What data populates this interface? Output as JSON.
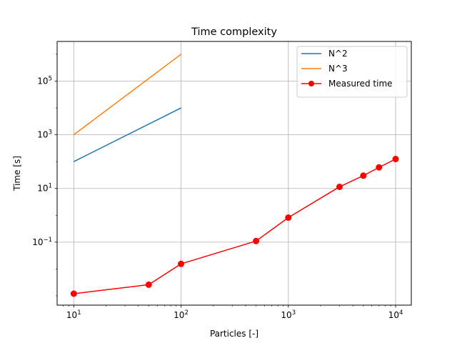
{
  "chart_data": {
    "type": "line",
    "title": "Time complexity",
    "xlabel": "Particles [-]",
    "ylabel": "Time [s]",
    "xscale": "log",
    "yscale": "log",
    "xlim": [
      7,
      14000
    ],
    "ylim": [
      0.00045,
      3000000
    ],
    "grid": true,
    "legend_placement": "top-right",
    "x_ticks": [
      {
        "value": 10,
        "base": "10",
        "exp": "1"
      },
      {
        "value": 100,
        "base": "10",
        "exp": "2"
      },
      {
        "value": 1000,
        "base": "10",
        "exp": "3"
      },
      {
        "value": 10000,
        "base": "10",
        "exp": "4"
      }
    ],
    "y_ticks": [
      {
        "value": 0.1,
        "base": "10",
        "exp": "−1"
      },
      {
        "value": 10,
        "base": "10",
        "exp": "1"
      },
      {
        "value": 1000,
        "base": "10",
        "exp": "3"
      },
      {
        "value": 100000,
        "base": "10",
        "exp": "5"
      }
    ],
    "series": [
      {
        "name": "N^2",
        "color": "#1f77b4",
        "marker": "none",
        "x": [
          10,
          100
        ],
        "y": [
          100,
          10000
        ]
      },
      {
        "name": "N^3",
        "color": "#ff7f0e",
        "marker": "none",
        "x": [
          10,
          100
        ],
        "y": [
          1000,
          1000000
        ]
      },
      {
        "name": "Measured time",
        "color": "#ff0000",
        "marker": "circle",
        "x": [
          10,
          50,
          100,
          500,
          1000,
          3000,
          5000,
          7000,
          10000
        ],
        "y": [
          0.0012,
          0.0026,
          0.0155,
          0.11,
          0.82,
          11.5,
          30,
          61,
          125
        ]
      }
    ]
  }
}
